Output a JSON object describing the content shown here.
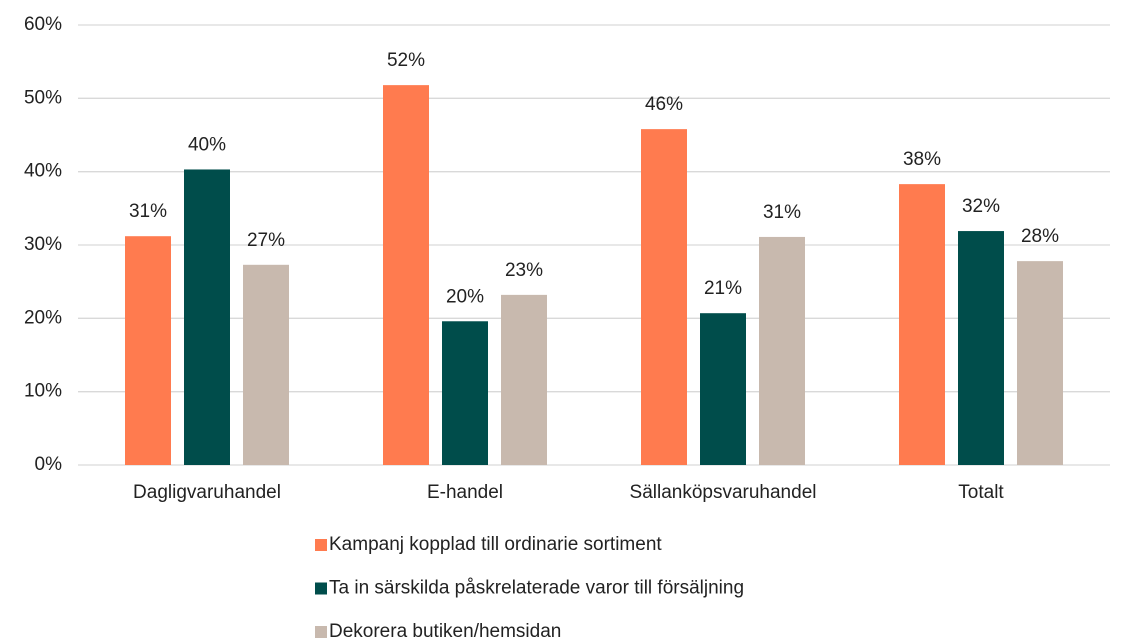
{
  "chart_data": {
    "type": "bar",
    "categories": [
      "Dagligvaruhandel",
      "E-handel",
      "Sällanköpsvaruhandel",
      "Totalt"
    ],
    "series": [
      {
        "name": "Kampanj kopplad till ordinarie sortiment",
        "color": "#ff7b4f",
        "values": [
          31.2,
          51.8,
          45.8,
          38.3
        ],
        "value_labels": [
          "31%",
          "52%",
          "46%",
          "38%"
        ]
      },
      {
        "name": "Ta in särskilda påskrelaterade varor till försäljning",
        "color": "#004d4b",
        "values": [
          40.3,
          19.6,
          20.7,
          31.9
        ],
        "value_labels": [
          "40%",
          "20%",
          "21%",
          "32%"
        ]
      },
      {
        "name": "Dekorera butiken/hemsidan",
        "color": "#c8b9ae",
        "values": [
          27.3,
          23.2,
          31.1,
          27.8
        ],
        "value_labels": [
          "27%",
          "23%",
          "31%",
          "28%"
        ]
      }
    ],
    "ylim": [
      0,
      60
    ],
    "yticks": [
      {
        "value": 0,
        "label": "0%"
      },
      {
        "value": 10,
        "label": "10%"
      },
      {
        "value": 20,
        "label": "20%"
      },
      {
        "value": 30,
        "label": "30%"
      },
      {
        "value": 40,
        "label": "40%"
      },
      {
        "value": 50,
        "label": "50%"
      },
      {
        "value": 60,
        "label": "60%"
      }
    ],
    "grid": true,
    "legend": "bottom"
  }
}
